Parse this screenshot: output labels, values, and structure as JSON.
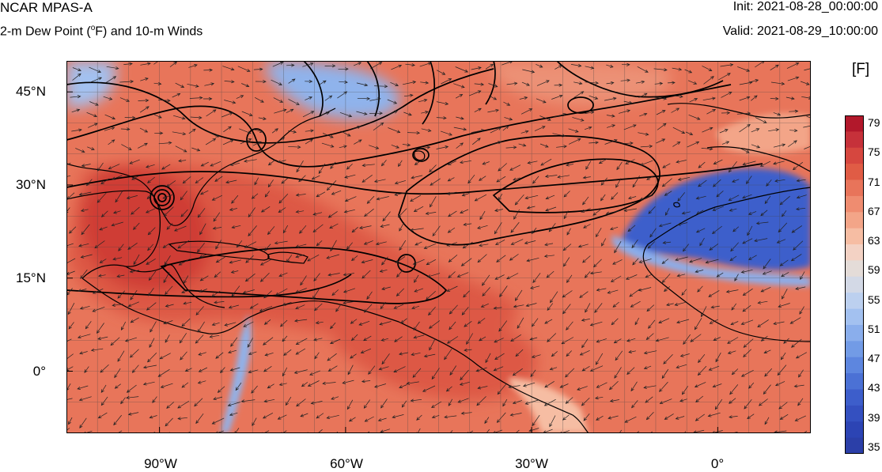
{
  "header": {
    "title": "NCAR MPAS-A",
    "subtitle_pre": "2-m Dew Point (",
    "subtitle_deg": "o",
    "subtitle_post": "F) and 10-m Winds",
    "init": "Init: 2021-08-28_00:00:00",
    "valid": "Valid: 2021-08-29_10:00:00"
  },
  "axes": {
    "lat_labels": [
      "45°N",
      "30°N",
      "15°N",
      "0°"
    ],
    "lat_values": [
      45,
      30,
      15,
      0
    ],
    "lon_labels": [
      "90°W",
      "60°W",
      "30°W",
      "0°"
    ],
    "lon_values": [
      -90,
      -60,
      -30,
      0
    ],
    "lat_range": [
      -10,
      50
    ],
    "lon_range": [
      -105,
      15
    ]
  },
  "colorbar": {
    "unit": "[F]",
    "labels": [
      "79",
      "75",
      "71",
      "67",
      "63",
      "59",
      "55",
      "51",
      "47",
      "43",
      "39",
      "35"
    ],
    "colors": [
      "#b2182b",
      "#c6313a",
      "#d6473f",
      "#e05c45",
      "#e8745a",
      "#ef8c70",
      "#f3a588",
      "#f6bda3",
      "#f3d2c4",
      "#e4dcd8",
      "#d3d9e6",
      "#bcd0ef",
      "#a3c1f0",
      "#8aaeec",
      "#729be6",
      "#5d86df",
      "#4b71d5",
      "#3d5ecb",
      "#3450c0",
      "#2c44b4",
      "#2b3fa8"
    ],
    "map_colors": {
      "ocean_warm": "#e8755a",
      "ocean_hot": "#dd5944",
      "gulf_hot": "#cf3e35",
      "dry_blue": "#3d5ecb",
      "cool_blue": "#8fb3ec",
      "pale": "#d9d8de"
    }
  }
}
